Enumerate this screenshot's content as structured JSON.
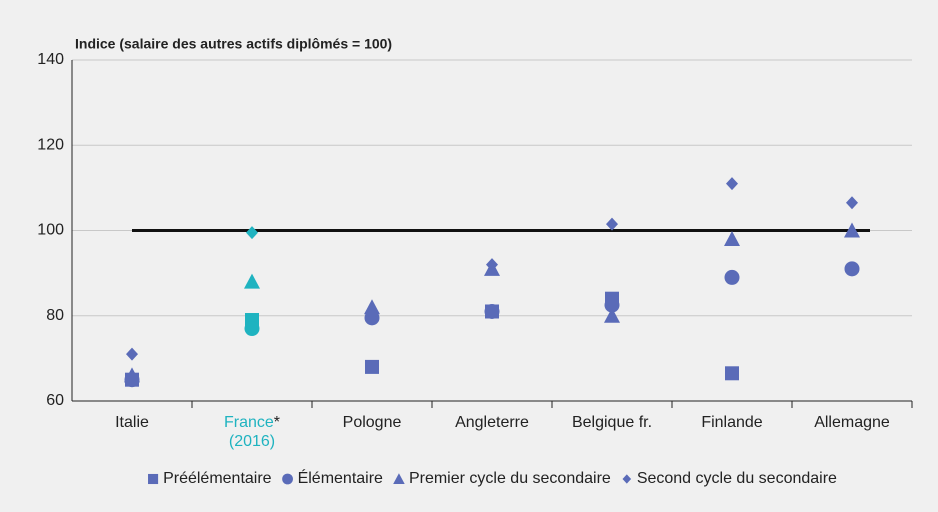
{
  "chart_data": {
    "type": "scatter",
    "title": "Indice (salaire des autres actifs diplômés = 100)",
    "categories": [
      "Italie",
      "France* (2016)",
      "Pologne",
      "Angleterre",
      "Belgique fr.",
      "Finlande",
      "Allemagne"
    ],
    "highlight_category": 1,
    "highlight_color": "#1fb3c0",
    "series": [
      {
        "name": "Préélémentaire",
        "marker": "square",
        "color": "#5a6bb8",
        "values": [
          65,
          79,
          68,
          81,
          84,
          66.5,
          null
        ]
      },
      {
        "name": "Élémentaire",
        "marker": "circle",
        "color": "#5a6bb8",
        "values": [
          65,
          77,
          79.5,
          81,
          82.5,
          89,
          91
        ]
      },
      {
        "name": "Premier cycle du secondaire",
        "marker": "triangle",
        "color": "#5a6bb8",
        "values": [
          66,
          88,
          82,
          91,
          80,
          98,
          100
        ]
      },
      {
        "name": "Second cycle du secondaire",
        "marker": "diamond",
        "color": "#5a6bb8",
        "values": [
          71,
          99.5,
          80.5,
          92,
          101.5,
          111,
          106.5
        ]
      }
    ],
    "reference": 100,
    "ylim": [
      60,
      140
    ],
    "yticks": [
      60,
      80,
      100,
      120,
      140
    ],
    "grid": true,
    "legend": "bottom"
  }
}
